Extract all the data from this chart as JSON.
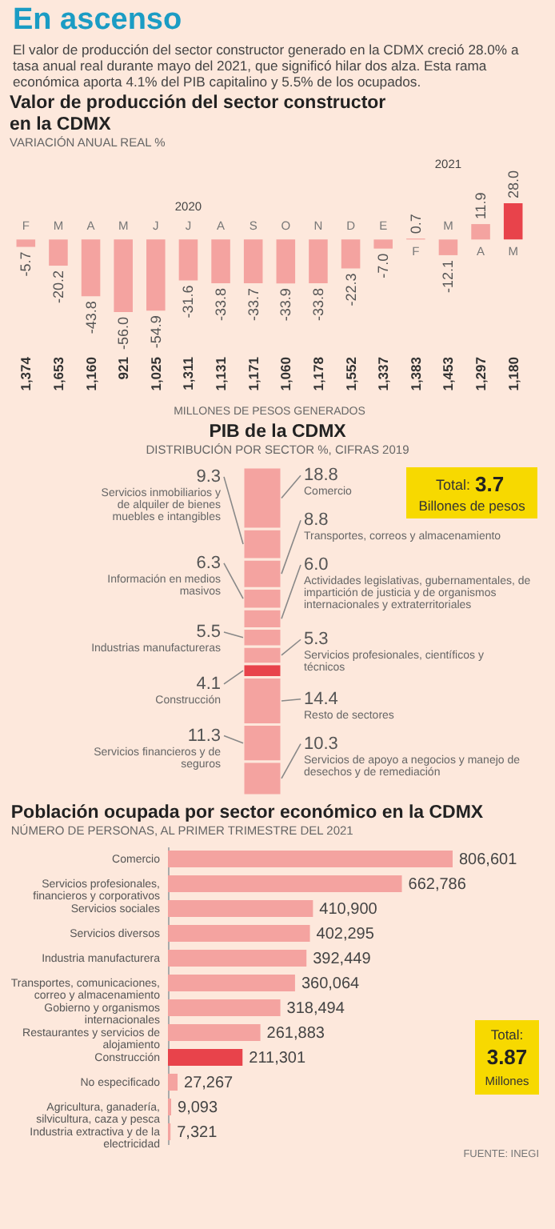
{
  "chart_data": [
    {
      "type": "bar",
      "title": "Valor de producción del sector constructor en la CDMX",
      "subtitle": "VARIACIÓN ANUAL REAL %",
      "categories": [
        "F",
        "M",
        "A",
        "M",
        "J",
        "J",
        "A",
        "S",
        "O",
        "N",
        "D",
        "E",
        "F",
        "M",
        "A",
        "M"
      ],
      "values": [
        -5.7,
        -20.2,
        -43.8,
        -56.0,
        -54.9,
        -31.6,
        -33.8,
        -33.7,
        -33.9,
        -33.8,
        -22.3,
        -7.0,
        0.7,
        -12.1,
        11.9,
        28.0
      ],
      "colors": [
        "#f4a3a0",
        "#f4a3a0",
        "#f4a3a0",
        "#f4a3a0",
        "#f4a3a0",
        "#f4a3a0",
        "#f4a3a0",
        "#f4a3a0",
        "#f4a3a0",
        "#f4a3a0",
        "#f4a3a0",
        "#f4a3a0",
        "#f4a3a0",
        "#f4a3a0",
        "#f4a3a0",
        "#e8434b"
      ],
      "value_labels": [
        "-5.7",
        "-20.2",
        "-43.8",
        "-56.0",
        "-54.9",
        "-31.6",
        "-33.8",
        "-33.7",
        "-33.9",
        "-33.8",
        "-22.3",
        "-7.0",
        "0.7",
        "-12.1",
        "11.9",
        "28.0"
      ],
      "tick_labels": "x",
      "annotations": [
        "En ascenso",
        "El valor de producción del sector constructor generado en la CDMX creció 28.0% a tasa anual real durante mayo del 2021, que significó hilar dos alza. Esta rama económica aporta 4.1% del PIB capitalino y 5.5% de los ocupados.",
        "2020",
        "2021",
        "1,374",
        "1,653",
        "1,160",
        "921",
        "1,025",
        "1,311",
        "1,131",
        "1,171",
        "1,060",
        "1,178",
        "1,552",
        "1,337",
        "1,383",
        "1,453",
        "1,297",
        "1,180",
        "MILLONES DE PESOS GENERADOS"
      ]
    },
    {
      "type": "bar",
      "stacked": true,
      "title": "PIB de la CDMX",
      "subtitle": "DISTRIBUCIÓN POR SECTOR %, CIFRAS 2019",
      "categories": [
        null
      ],
      "series": [
        {
          "name": "Servicios de apoyo a negocios y manejo de desechos y de remediación",
          "color": "#f4a3a0",
          "values": [
            10.3
          ],
          "value_labels": [
            "10.3"
          ]
        },
        {
          "name": "Servicios financieros y de seguros",
          "color": "#f4a3a0",
          "values": [
            11.3
          ],
          "value_labels": [
            "11.3"
          ]
        },
        {
          "name": "Resto de sectores",
          "color": "#f4a3a0",
          "values": [
            14.4
          ],
          "value_labels": [
            "14.4"
          ]
        },
        {
          "name": "Construcción",
          "color": "#e8434b",
          "values": [
            4.1
          ],
          "value_labels": [
            "4.1"
          ]
        },
        {
          "name": "Servicios profesionales, científicos y técnicos",
          "color": "#f4a3a0",
          "values": [
            5.3
          ],
          "value_labels": [
            "5.3"
          ]
        },
        {
          "name": "Industrias manufactureras",
          "color": "#f4a3a0",
          "values": [
            5.5
          ],
          "value_labels": [
            "5.5"
          ]
        },
        {
          "name": "Actividades legislativas, gubernamentales, de impartición de justicia y de organismos internacionales y extraterritoriales",
          "color": "#f4a3a0",
          "values": [
            6.0
          ],
          "value_labels": [
            "6.0"
          ]
        },
        {
          "name": "Información en medios masivos",
          "color": "#f4a3a0",
          "values": [
            6.3
          ],
          "value_labels": [
            "6.3"
          ]
        },
        {
          "name": "Transportes, correos y almacenamiento",
          "color": "#f4a3a0",
          "values": [
            8.8
          ],
          "value_labels": [
            "8.8"
          ]
        },
        {
          "name": "Servicios inmobiliarios y de alquiler de bienes muebles e intangibles",
          "color": "#f4a3a0",
          "values": [
            9.3
          ],
          "value_labels": [
            "9.3"
          ]
        },
        {
          "name": "Comercio",
          "color": "#f4a3a0",
          "values": [
            18.8
          ],
          "value_labels": [
            "18.8"
          ]
        }
      ],
      "annotations": [
        "Total:",
        "3.7",
        "Billones de pesos"
      ]
    },
    {
      "type": "bar",
      "orientation": "horizontal",
      "title": "Población ocupada por sector económico en la CDMX",
      "subtitle": "NÚMERO DE PERSONAS, AL PRIMER TRIMESTRE DEL 2021",
      "categories": [
        "Comercio",
        "Servicios profesionales, financieros y corporativos",
        "Servicios sociales",
        "Servicios diversos",
        "Industria manufacturera",
        "Transportes, comunicaciones, correo y almacenamiento",
        "Gobierno y organismos internacionales",
        "Restaurantes y servicios de alojamiento",
        "Construcción",
        "No especificado",
        "Agricultura, ganadería, silvicultura, caza y pesca",
        "Industria extractiva y de la electricidad"
      ],
      "values": [
        806601,
        662786,
        410900,
        402295,
        392449,
        360064,
        318494,
        261883,
        211301,
        27267,
        9093,
        7321
      ],
      "colors": [
        "#f4a3a0",
        "#f4a3a0",
        "#f4a3a0",
        "#f4a3a0",
        "#f4a3a0",
        "#f4a3a0",
        "#f4a3a0",
        "#f4a3a0",
        "#e8434b",
        "#f4a3a0",
        "#f4a3a0",
        "#f4a3a0"
      ],
      "value_labels": [
        "806,601",
        "662,786",
        "410,900",
        "402,295",
        "392,449",
        "360,064",
        "318,494",
        "261,883",
        "211,301",
        "27,267",
        "9,093",
        "7,321"
      ],
      "tick_labels": "y",
      "annotations": [
        "Total:",
        "3.87",
        "Millones",
        "FUENTE: INEGI"
      ]
    }
  ]
}
